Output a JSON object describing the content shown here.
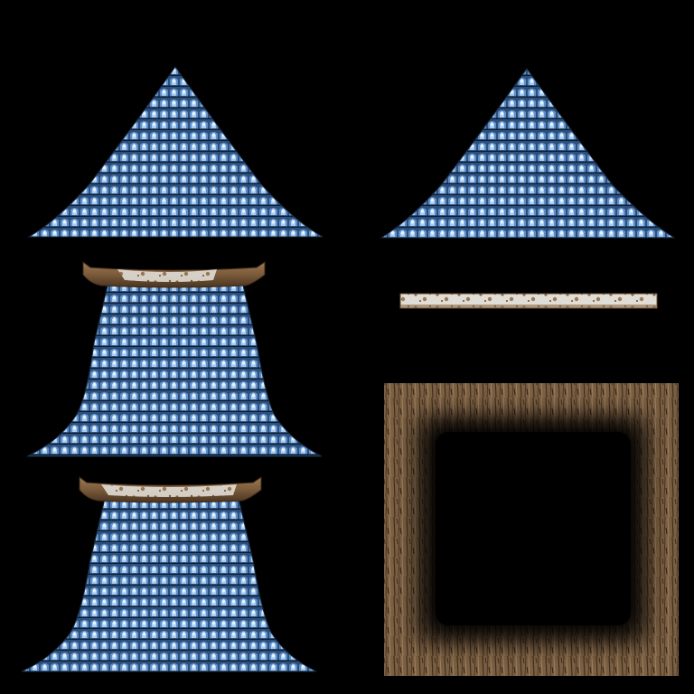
{
  "texture_atlas": {
    "background_color": "#000000",
    "tile_colors": {
      "base": "#2d4f7c",
      "mid": "#5f8fc8",
      "highlight": "#d8ecff",
      "shadow": "#0d1d33"
    },
    "wood_colors": {
      "base": "#7a5a3a",
      "light": "#a07a52",
      "dark": "#4a3420"
    },
    "snow_colors": {
      "base": "#e0ddd6",
      "speck": "#8a6a48"
    },
    "frame_colors": {
      "base": "#7b5f42",
      "light": "#a08060",
      "dark": "#3f2e1e",
      "inner": "#000000"
    },
    "pieces": [
      {
        "id": "roof-cone-left",
        "kind": "roof-cone"
      },
      {
        "id": "roof-cone-right",
        "kind": "roof-cone"
      },
      {
        "id": "roof-flared-upper",
        "kind": "roof-flared-with-beam"
      },
      {
        "id": "snow-beam-strip",
        "kind": "snow-beam"
      },
      {
        "id": "roof-flared-lower",
        "kind": "roof-flared-with-beam"
      },
      {
        "id": "wood-frame",
        "kind": "square-frame"
      }
    ]
  }
}
